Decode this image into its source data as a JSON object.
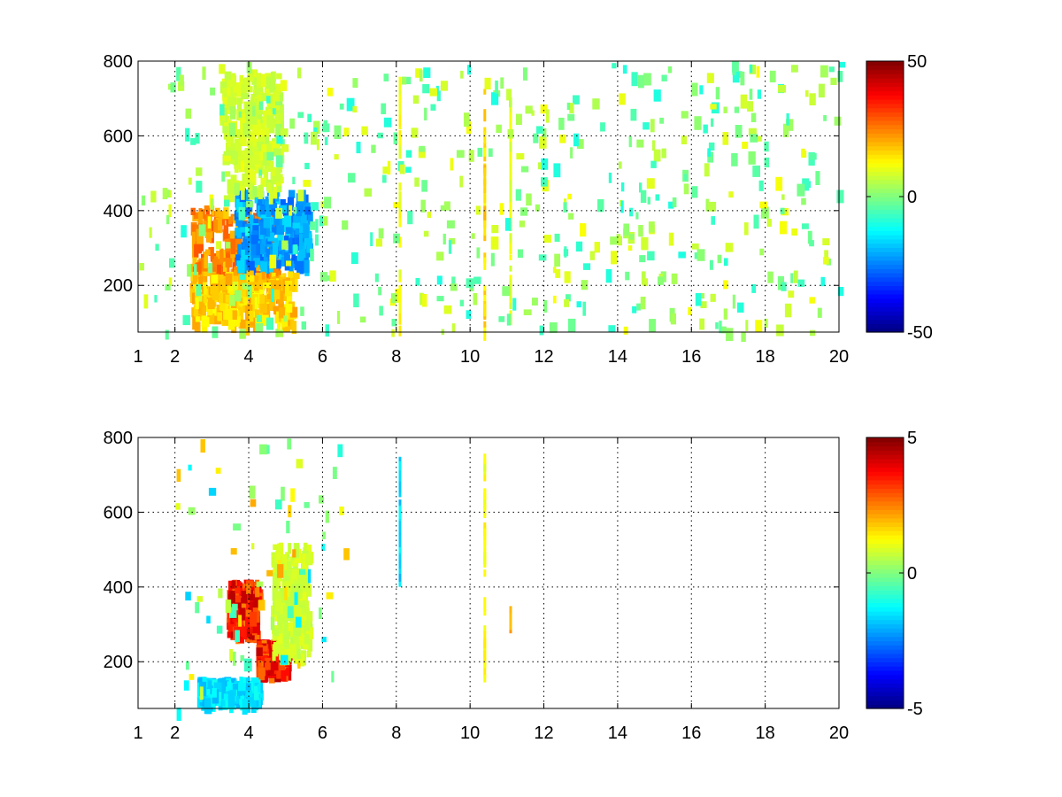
{
  "chart_data": [
    {
      "type": "heatmap",
      "colormap": "jet",
      "grid": true,
      "xlim": [
        1,
        20
      ],
      "ylim": [
        75,
        800
      ],
      "xticks": [
        1,
        2,
        4,
        6,
        8,
        10,
        12,
        14,
        16,
        18,
        20
      ],
      "xtick_labels": [
        "1",
        "2",
        "4",
        "6",
        "8",
        "10",
        "12",
        "14",
        "16",
        "18",
        "20"
      ],
      "yticks": [
        200,
        400,
        600,
        800
      ],
      "ytick_labels": [
        "200",
        "400",
        "600",
        "800"
      ],
      "colorbar": {
        "min": -50,
        "max": 50,
        "ticks": [
          -50,
          0,
          50
        ],
        "tick_labels": [
          "-50",
          "0",
          "50"
        ]
      },
      "features": [
        {
          "kind": "band",
          "x": [
            2.4,
            4.8
          ],
          "y": [
            180,
            420
          ],
          "value": 30
        },
        {
          "kind": "band",
          "x": [
            3.6,
            5.6
          ],
          "y": [
            260,
            460
          ],
          "value": -28
        },
        {
          "kind": "band",
          "x": [
            2.4,
            5.2
          ],
          "y": [
            100,
            240
          ],
          "value": 22
        },
        {
          "kind": "band",
          "x": [
            3.2,
            4.8
          ],
          "y": [
            450,
            780
          ],
          "value": 10
        },
        {
          "kind": "stripe",
          "x": 8.1,
          "y": [
            80,
            800
          ],
          "value": 15
        },
        {
          "kind": "stripe",
          "x": 10.4,
          "y": [
            80,
            760
          ],
          "value": 20
        },
        {
          "kind": "stripe",
          "x": 11.1,
          "y": [
            80,
            700
          ],
          "value": 12
        }
      ]
    },
    {
      "type": "heatmap",
      "colormap": "jet",
      "grid": true,
      "xlim": [
        1,
        20
      ],
      "ylim": [
        75,
        800
      ],
      "xticks": [
        1,
        2,
        4,
        6,
        8,
        10,
        12,
        14,
        16,
        18,
        20
      ],
      "xtick_labels": [
        "1",
        "2",
        "4",
        "6",
        "8",
        "10",
        "12",
        "14",
        "16",
        "18",
        "20"
      ],
      "yticks": [
        200,
        400,
        600,
        800
      ],
      "ytick_labels": [
        "200",
        "400",
        "600",
        "800"
      ],
      "colorbar": {
        "min": -5,
        "max": 5,
        "ticks": [
          -5,
          0,
          5
        ],
        "tick_labels": [
          "-5",
          "0",
          "5"
        ]
      },
      "features": [
        {
          "kind": "band",
          "x": [
            3.4,
            4.2
          ],
          "y": [
            280,
            420
          ],
          "value": 4.5
        },
        {
          "kind": "band",
          "x": [
            4.2,
            5.0
          ],
          "y": [
            180,
            260
          ],
          "value": 4.5
        },
        {
          "kind": "band",
          "x": [
            2.6,
            4.2
          ],
          "y": [
            100,
            160
          ],
          "value": -2
        },
        {
          "kind": "band",
          "x": [
            4.6,
            5.6
          ],
          "y": [
            220,
            520
          ],
          "value": 1
        },
        {
          "kind": "stripe",
          "x": 8.1,
          "y": [
            410,
            780
          ],
          "value": -2
        },
        {
          "kind": "stripe",
          "x": 10.4,
          "y": [
            160,
            760
          ],
          "value": 1.5
        },
        {
          "kind": "stripe",
          "x": 11.1,
          "y": [
            320,
            350
          ],
          "value": 2.5
        }
      ]
    }
  ]
}
